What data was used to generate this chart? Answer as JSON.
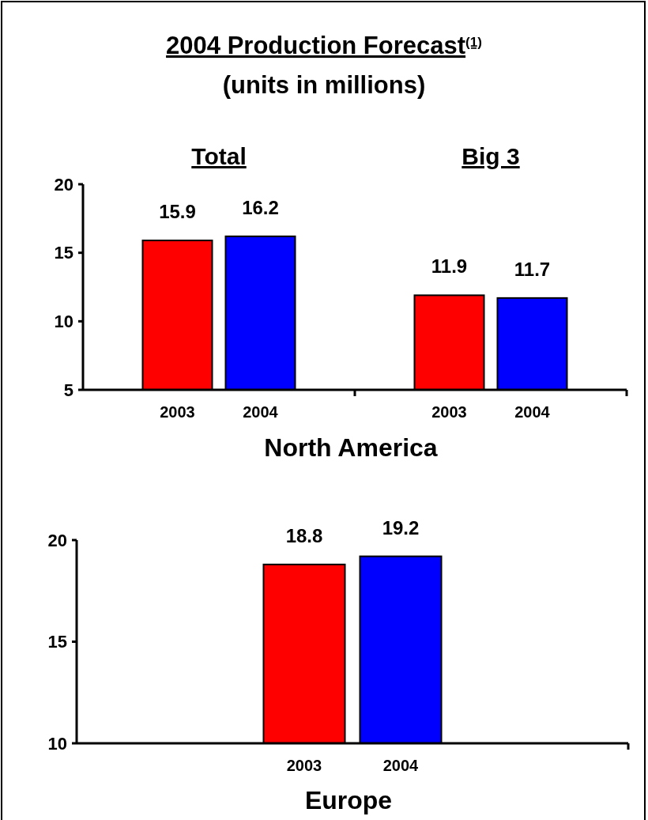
{
  "chart_data": [
    {
      "type": "bar",
      "title": "2004 Production Forecast$^{(1)}$",
      "subtitle": "(units in millions)",
      "xlabel": "North America",
      "annotations": [
        "Total",
        "Big 3"
      ],
      "categories": [
        "2003",
        "2004",
        "2003",
        "2004"
      ],
      "values": [
        15.9,
        16.2,
        11.9,
        11.7
      ],
      "colors": [
        "#ff0000",
        "#0000ff",
        "#ff0000",
        "#0000ff"
      ],
      "ylim": [
        5,
        20
      ],
      "yticks": [
        5,
        10,
        15,
        20
      ],
      "data_labels": true
    },
    {
      "type": "bar",
      "xlabel": "Europe",
      "categories": [
        "2003",
        "2004"
      ],
      "values": [
        18.8,
        19.2
      ],
      "colors": [
        "#ff0000",
        "#0000ff"
      ],
      "ylim": [
        10,
        20
      ],
      "yticks": [
        10,
        15,
        20
      ],
      "data_labels": true
    }
  ]
}
